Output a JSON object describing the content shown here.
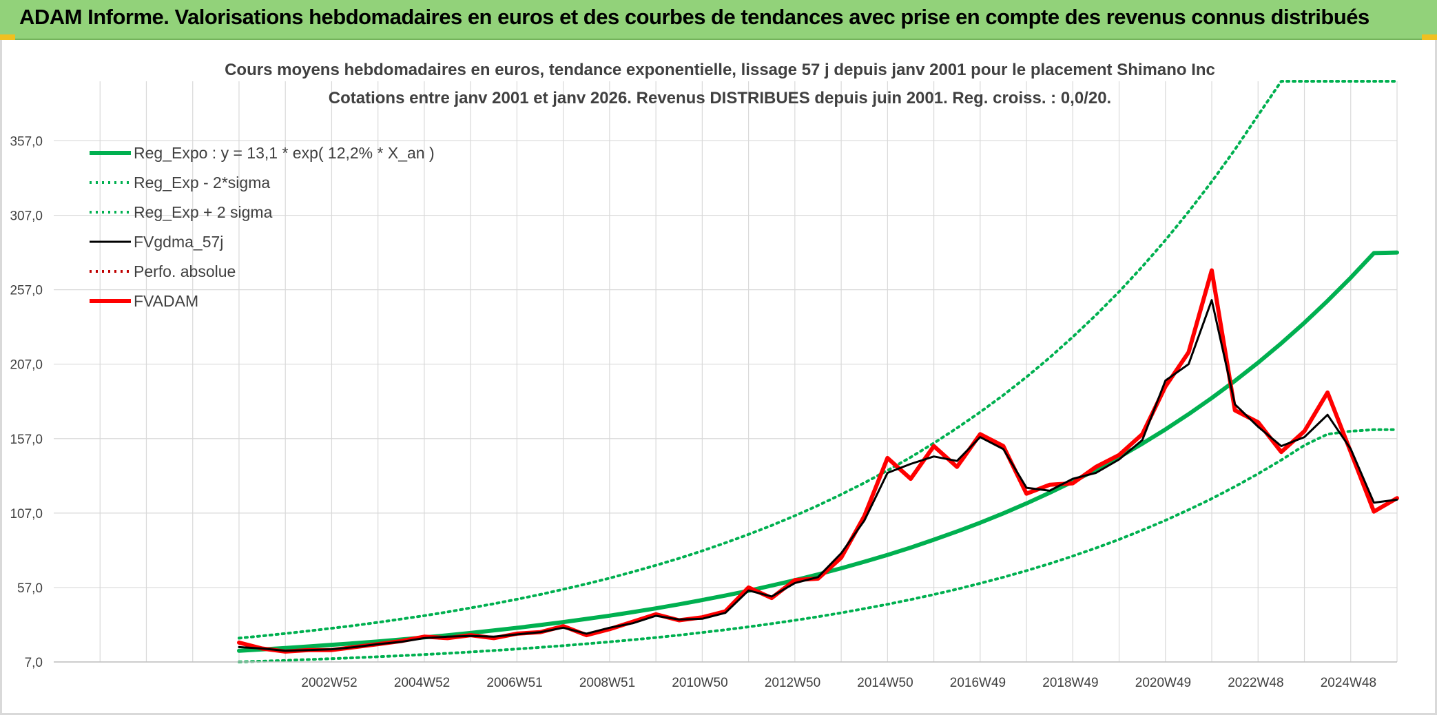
{
  "banner": {
    "title": "ADAM Informe. Valorisations hebdomadaires en euros et des courbes de tendances avec prise en compte des revenus connus distribués"
  },
  "colors": {
    "banner_bg": "#92d27a",
    "reg_expo": "#00b050",
    "band": "#00b050",
    "fvgdma": "#000000",
    "perfo": "#c00000",
    "fvadam": "#ff0000",
    "gridline": "#d9d9d9",
    "text": "#404040"
  },
  "chart_data": {
    "type": "line",
    "title": "Cours moyens hebdomadaires en euros, tendance exponentielle, lissage 57 j depuis janv 2001 pour le placement Shimano Inc",
    "subtitle": "Cotations entre janv 2001 et janv 2026. Revenus DISTRIBUES depuis juin 2001. Reg. croiss. : 0,0/20.",
    "xlabel": "",
    "ylabel": "",
    "xlim": [
      1997,
      2026
    ],
    "ylim": [
      7,
      397
    ],
    "y_ticks": [
      7,
      57,
      107,
      157,
      207,
      257,
      307,
      357
    ],
    "y_tick_labels": [
      "7,0",
      "57,0",
      "107,0",
      "157,0",
      "207,0",
      "257,0",
      "307,0",
      "357,0"
    ],
    "x_ticks": [
      2002.95,
      2004.95,
      2006.95,
      2008.95,
      2010.95,
      2012.95,
      2014.95,
      2016.95,
      2018.95,
      2020.95,
      2022.95,
      2024.95
    ],
    "x_tick_labels": [
      "2002W52",
      "2004W52",
      "2006W51",
      "2008W51",
      "2010W50",
      "2012W50",
      "2014W50",
      "2016W49",
      "2018W49",
      "2020W49",
      "2022W48",
      "2024W48"
    ],
    "grid": true,
    "legend_position": "top-left",
    "legend": [
      {
        "name": "Reg_Expo : y = 13,1 * exp( 12,2% *  X_an )",
        "style": "thick-solid",
        "color": "#00b050"
      },
      {
        "name": "Reg_Exp - 2*sigma",
        "style": "dotted",
        "color": "#00b050"
      },
      {
        "name": "Reg_Exp + 2 sigma",
        "style": "dotted",
        "color": "#00b050"
      },
      {
        "name": "FVgdma_57j",
        "style": "solid",
        "color": "#000000"
      },
      {
        "name": "Perfo. absolue",
        "style": "dotted",
        "color": "#c00000"
      },
      {
        "name": "FVADAM",
        "style": "thick-solid",
        "color": "#ff0000"
      }
    ],
    "x": [
      2001.0,
      2001.5,
      2002.0,
      2002.5,
      2003.0,
      2003.5,
      2004.0,
      2004.5,
      2005.0,
      2005.5,
      2006.0,
      2006.5,
      2007.0,
      2007.5,
      2008.0,
      2008.5,
      2009.0,
      2009.5,
      2010.0,
      2010.5,
      2011.0,
      2011.5,
      2012.0,
      2012.5,
      2013.0,
      2013.5,
      2014.0,
      2014.5,
      2015.0,
      2015.5,
      2016.0,
      2016.5,
      2017.0,
      2017.5,
      2018.0,
      2018.5,
      2019.0,
      2019.5,
      2020.0,
      2020.5,
      2021.0,
      2021.5,
      2022.0,
      2022.5,
      2023.0,
      2023.5,
      2024.0,
      2024.5,
      2025.0,
      2025.5,
      2026.0
    ],
    "series": [
      {
        "name": "Reg_Expo : y = 13,1 * exp( 12,2% *  X_an )",
        "values": [
          14.5,
          15.4,
          16.4,
          17.4,
          18.5,
          19.6,
          20.8,
          22.1,
          23.5,
          24.9,
          26.5,
          28.2,
          29.9,
          31.8,
          33.8,
          35.9,
          38.1,
          40.5,
          43.0,
          45.7,
          48.6,
          51.6,
          54.8,
          58.3,
          61.9,
          65.8,
          69.9,
          74.3,
          78.9,
          83.8,
          89.1,
          94.6,
          100.5,
          106.8,
          113.5,
          120.6,
          128.1,
          136.1,
          144.6,
          153.6,
          163.2,
          173.4,
          184.3,
          195.8,
          208.0,
          221.0,
          234.8,
          249.5,
          265.1,
          281.6,
          282.0
        ]
      },
      {
        "name": "Reg_Exp - 2*sigma",
        "values": [
          7.0,
          7.5,
          8.0,
          8.6,
          9.2,
          9.8,
          10.5,
          11.2,
          12.0,
          12.8,
          13.7,
          14.7,
          15.7,
          16.8,
          17.9,
          19.2,
          20.5,
          21.9,
          23.4,
          25.0,
          26.8,
          28.6,
          30.6,
          32.7,
          35.0,
          37.4,
          40.0,
          42.8,
          45.7,
          48.9,
          52.3,
          55.9,
          59.8,
          63.9,
          68.3,
          73.0,
          78.1,
          83.5,
          89.3,
          95.5,
          102.1,
          109.2,
          116.7,
          124.8,
          133.4,
          142.6,
          152.5,
          160.0,
          162.0,
          163.0,
          163.0
        ]
      },
      {
        "name": "Reg_Exp + 2 sigma",
        "values": [
          23.0,
          24.5,
          26.1,
          27.8,
          29.6,
          31.5,
          33.6,
          35.8,
          38.1,
          40.6,
          43.3,
          46.1,
          49.1,
          52.3,
          55.8,
          59.4,
          63.3,
          67.5,
          71.9,
          76.6,
          81.6,
          87.0,
          92.7,
          98.7,
          105.2,
          112.1,
          119.5,
          127.3,
          135.6,
          144.5,
          154.0,
          164.1,
          174.8,
          186.2,
          198.4,
          211.4,
          225.3,
          240.0,
          255.7,
          272.5,
          290.3,
          309.4,
          329.6,
          351.2,
          374.2,
          397.0,
          397.0,
          397.0,
          397.0,
          397.0,
          397.0
        ]
      },
      {
        "name": "FVgdma_57j",
        "values": [
          17.0,
          16.0,
          14.5,
          15.0,
          15.5,
          17.0,
          19.0,
          20.5,
          23.0,
          24.0,
          24.5,
          24.0,
          25.5,
          27.0,
          30.0,
          26.0,
          30.0,
          33.0,
          38.0,
          35.5,
          36.0,
          40.0,
          55.0,
          51.0,
          60.0,
          64.0,
          80.0,
          102.0,
          134.0,
          140.0,
          145.0,
          142.0,
          158.0,
          150.0,
          124.0,
          122.0,
          130.0,
          134.0,
          143.0,
          156.0,
          196.0,
          207.0,
          250.0,
          180.0,
          165.0,
          152.0,
          158.0,
          173.0,
          150.0,
          114.0,
          116.0
        ]
      },
      {
        "name": "Perfo. absolue",
        "values": [
          17.0,
          16.0,
          14.5,
          15.0,
          15.5,
          17.0,
          19.0,
          20.5,
          23.0,
          24.0,
          24.5,
          24.0,
          25.5,
          27.0,
          30.0,
          26.0,
          30.0,
          33.0,
          38.0,
          35.5,
          36.0,
          40.0,
          55.0,
          51.0,
          60.0,
          64.0,
          80.0,
          102.0,
          134.0,
          140.0,
          145.0,
          142.0,
          158.0,
          150.0,
          124.0,
          122.0,
          130.0,
          134.0,
          143.0,
          156.0,
          196.0,
          207.0,
          250.0,
          180.0,
          165.0,
          152.0,
          158.0,
          173.0,
          150.0,
          114.0,
          116.0
        ]
      },
      {
        "name": "FVADAM",
        "values": [
          20.0,
          16.0,
          14.0,
          15.0,
          15.0,
          17.0,
          19.0,
          21.0,
          24.0,
          23.0,
          25.0,
          23.0,
          26.0,
          27.0,
          31.0,
          25.0,
          29.0,
          34.0,
          39.0,
          35.0,
          37.0,
          41.0,
          57.0,
          50.0,
          62.0,
          63.0,
          77.0,
          105.0,
          144.0,
          130.0,
          152.0,
          138.0,
          160.0,
          152.0,
          120.0,
          126.0,
          127.0,
          138.0,
          146.0,
          160.0,
          192.0,
          215.0,
          270.0,
          176.0,
          168.0,
          148.0,
          162.0,
          188.0,
          148.0,
          108.0,
          117.0
        ]
      }
    ]
  }
}
